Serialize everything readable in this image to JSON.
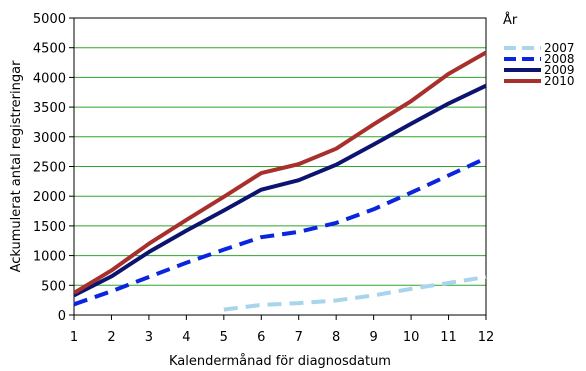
{
  "chart_data": {
    "type": "line",
    "title": "",
    "xlabel": "Kalendermånad för diagnosdatum",
    "ylabel": "Ackumulerat antal registreringar",
    "x": [
      1,
      2,
      3,
      4,
      5,
      6,
      7,
      8,
      9,
      10,
      11,
      12
    ],
    "xlim": [
      1,
      12
    ],
    "ylim": [
      0,
      5000
    ],
    "yticks": [
      0,
      500,
      1000,
      1500,
      2000,
      2500,
      3000,
      3500,
      4000,
      4500,
      5000
    ],
    "grid": "horizontal",
    "legend": {
      "title": "År",
      "position": "right"
    },
    "series": [
      {
        "name": "2007",
        "color": "#a8d4ec",
        "dash": "dashed",
        "values": [
          null,
          null,
          null,
          null,
          90,
          170,
          200,
          245,
          330,
          440,
          540,
          640
        ]
      },
      {
        "name": "2008",
        "color": "#0a24e0",
        "dash": "dashed",
        "values": [
          180,
          400,
          640,
          880,
          1100,
          1310,
          1400,
          1550,
          1780,
          2060,
          2350,
          2640
        ]
      },
      {
        "name": "2009",
        "color": "#0c1470",
        "dash": "solid",
        "values": [
          330,
          650,
          1060,
          1420,
          1760,
          2110,
          2270,
          2530,
          2870,
          3220,
          3560,
          3860
        ]
      },
      {
        "name": "2010",
        "color": "#a8302c",
        "dash": "solid",
        "values": [
          370,
          750,
          1200,
          1600,
          1990,
          2390,
          2540,
          2800,
          3210,
          3600,
          4060,
          4420
        ]
      }
    ]
  }
}
